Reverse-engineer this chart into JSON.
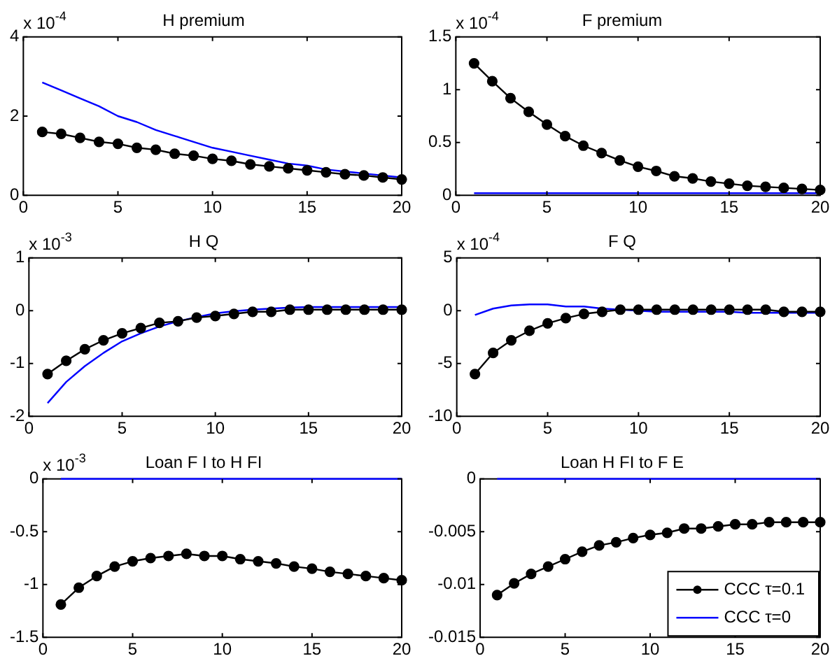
{
  "chart_data": [
    {
      "type": "line",
      "title": "H premium",
      "annotations": [
        "x 10$^{-4}$"
      ],
      "x": [
        1,
        2,
        3,
        4,
        5,
        6,
        7,
        8,
        9,
        10,
        11,
        12,
        13,
        14,
        15,
        16,
        17,
        18,
        19,
        20
      ],
      "xlim": [
        0,
        20
      ],
      "xticks": [
        0,
        5,
        10,
        15,
        20
      ],
      "ylim": [
        0,
        4
      ],
      "yticks": [
        0,
        2,
        4
      ],
      "grid": false,
      "line_style": "solid",
      "series": [
        {
          "color": "#000000",
          "marker": "circle",
          "values": [
            1.6,
            1.55,
            1.45,
            1.35,
            1.3,
            1.2,
            1.15,
            1.05,
            1.0,
            0.92,
            0.87,
            0.78,
            0.73,
            0.68,
            0.63,
            0.58,
            0.53,
            0.5,
            0.45,
            0.4
          ]
        },
        {
          "color": "#0000ff",
          "marker": "none",
          "values": [
            2.85,
            2.65,
            2.45,
            2.25,
            2.0,
            1.85,
            1.65,
            1.5,
            1.35,
            1.2,
            1.1,
            1.0,
            0.9,
            0.8,
            0.75,
            0.65,
            0.6,
            0.55,
            0.5,
            0.45
          ]
        }
      ]
    },
    {
      "type": "line",
      "title": "F premium",
      "annotations": [
        "x 10$^{-4}$"
      ],
      "x": [
        1,
        2,
        3,
        4,
        5,
        6,
        7,
        8,
        9,
        10,
        11,
        12,
        13,
        14,
        15,
        16,
        17,
        18,
        19,
        20
      ],
      "xlim": [
        0,
        20
      ],
      "xticks": [
        0,
        5,
        10,
        15,
        20
      ],
      "ylim": [
        0,
        1.5
      ],
      "yticks": [
        0,
        0.5,
        1,
        1.5
      ],
      "grid": false,
      "line_style": "solid",
      "series": [
        {
          "color": "#000000",
          "marker": "circle",
          "values": [
            1.25,
            1.08,
            0.92,
            0.79,
            0.67,
            0.56,
            0.47,
            0.4,
            0.33,
            0.27,
            0.23,
            0.18,
            0.16,
            0.13,
            0.11,
            0.09,
            0.08,
            0.07,
            0.06,
            0.05
          ]
        },
        {
          "color": "#0000ff",
          "marker": "none",
          "values": [
            0.02,
            0.02,
            0.02,
            0.02,
            0.02,
            0.02,
            0.02,
            0.02,
            0.02,
            0.02,
            0.02,
            0.02,
            0.02,
            0.02,
            0.02,
            0.02,
            0.02,
            0.02,
            0.02,
            0.02
          ]
        }
      ]
    },
    {
      "type": "line",
      "title": "H Q",
      "annotations": [
        "x 10$^{-3}$"
      ],
      "x": [
        1,
        2,
        3,
        4,
        5,
        6,
        7,
        8,
        9,
        10,
        11,
        12,
        13,
        14,
        15,
        16,
        17,
        18,
        19,
        20
      ],
      "xlim": [
        0,
        20
      ],
      "xticks": [
        0,
        5,
        10,
        15,
        20
      ],
      "ylim": [
        -2,
        1
      ],
      "yticks": [
        -2,
        -1,
        0,
        1
      ],
      "grid": false,
      "line_style": "solid",
      "series": [
        {
          "color": "#000000",
          "marker": "circle",
          "values": [
            -1.2,
            -0.95,
            -0.73,
            -0.56,
            -0.43,
            -0.33,
            -0.23,
            -0.2,
            -0.13,
            -0.1,
            -0.06,
            -0.02,
            -0.02,
            0.02,
            0.02,
            0.02,
            0.02,
            0.02,
            0.02,
            0.02
          ]
        },
        {
          "color": "#0000ff",
          "marker": "none",
          "values": [
            -1.75,
            -1.35,
            -1.05,
            -0.8,
            -0.58,
            -0.43,
            -0.3,
            -0.2,
            -0.12,
            -0.05,
            -0.01,
            0.02,
            0.04,
            0.06,
            0.07,
            0.07,
            0.07,
            0.07,
            0.07,
            0.07
          ]
        }
      ]
    },
    {
      "type": "line",
      "title": "F Q",
      "annotations": [
        "x 10$^{-4}$"
      ],
      "x": [
        1,
        2,
        3,
        4,
        5,
        6,
        7,
        8,
        9,
        10,
        11,
        12,
        13,
        14,
        15,
        16,
        17,
        18,
        19,
        20
      ],
      "xlim": [
        0,
        20
      ],
      "xticks": [
        0,
        5,
        10,
        15,
        20
      ],
      "ylim": [
        -10,
        5
      ],
      "yticks": [
        -10,
        -5,
        0,
        5
      ],
      "grid": false,
      "line_style": "solid",
      "series": [
        {
          "color": "#000000",
          "marker": "circle",
          "values": [
            -6,
            -4,
            -2.8,
            -1.9,
            -1.2,
            -0.7,
            -0.3,
            -0.1,
            0.1,
            0.1,
            0.1,
            0.1,
            0.1,
            0.1,
            0.1,
            0.1,
            0.1,
            -0.1,
            -0.1,
            -0.1
          ]
        },
        {
          "color": "#0000ff",
          "marker": "none",
          "values": [
            -0.4,
            0.2,
            0.5,
            0.6,
            0.6,
            0.4,
            0.4,
            0.2,
            0.1,
            0,
            -0.1,
            -0.1,
            -0.1,
            -0.1,
            -0.1,
            -0.2,
            -0.2,
            -0.2,
            -0.2,
            -0.2
          ]
        }
      ]
    },
    {
      "type": "line",
      "title": "Loan F I to H FI",
      "annotations": [
        "x 10$^{-3}$"
      ],
      "x": [
        1,
        2,
        3,
        4,
        5,
        6,
        7,
        8,
        9,
        10,
        11,
        12,
        13,
        14,
        15,
        16,
        17,
        18,
        19,
        20
      ],
      "xlim": [
        0,
        20
      ],
      "xticks": [
        0,
        5,
        10,
        15,
        20
      ],
      "ylim": [
        -1.5,
        0
      ],
      "yticks": [
        -1.5,
        -1,
        -0.5,
        0
      ],
      "grid": false,
      "line_style": "solid",
      "series": [
        {
          "color": "#000000",
          "marker": "circle",
          "values": [
            -1.19,
            -1.03,
            -0.92,
            -0.83,
            -0.78,
            -0.75,
            -0.73,
            -0.71,
            -0.73,
            -0.73,
            -0.76,
            -0.78,
            -0.8,
            -0.83,
            -0.85,
            -0.88,
            -0.9,
            -0.92,
            -0.94,
            -0.96
          ]
        },
        {
          "color": "#0000ff",
          "marker": "none",
          "values": [
            0,
            0,
            0,
            0,
            0,
            0,
            0,
            0,
            0,
            0,
            0,
            0,
            0,
            0,
            0,
            0,
            0,
            0,
            0,
            0
          ]
        }
      ]
    },
    {
      "type": "line",
      "title": "Loan H FI to F E",
      "x": [
        1,
        2,
        3,
        4,
        5,
        6,
        7,
        8,
        9,
        10,
        11,
        12,
        13,
        14,
        15,
        16,
        17,
        18,
        19,
        20
      ],
      "xlim": [
        0,
        20
      ],
      "xticks": [
        0,
        5,
        10,
        15,
        20
      ],
      "ylim": [
        -0.015,
        0
      ],
      "yticks": [
        -0.015,
        -0.01,
        -0.005,
        0
      ],
      "grid": false,
      "line_style": "solid",
      "legend": "bottom right",
      "series": [
        {
          "name": "CCC τ=0.1",
          "color": "#000000",
          "marker": "circle",
          "values": [
            -0.011,
            -0.0099,
            -0.009,
            -0.0083,
            -0.0076,
            -0.0069,
            -0.0063,
            -0.006,
            -0.0056,
            -0.0053,
            -0.0051,
            -0.0047,
            -0.0047,
            -0.0045,
            -0.0043,
            -0.0043,
            -0.0041,
            -0.0041,
            -0.0041,
            -0.0041
          ]
        },
        {
          "name": "CCC τ=0",
          "color": "#0000ff",
          "marker": "none",
          "values": [
            0,
            0,
            0,
            0,
            0,
            0,
            0,
            0,
            0,
            0,
            0,
            0,
            0,
            0,
            0,
            0,
            0,
            0,
            0,
            0
          ]
        }
      ]
    }
  ]
}
